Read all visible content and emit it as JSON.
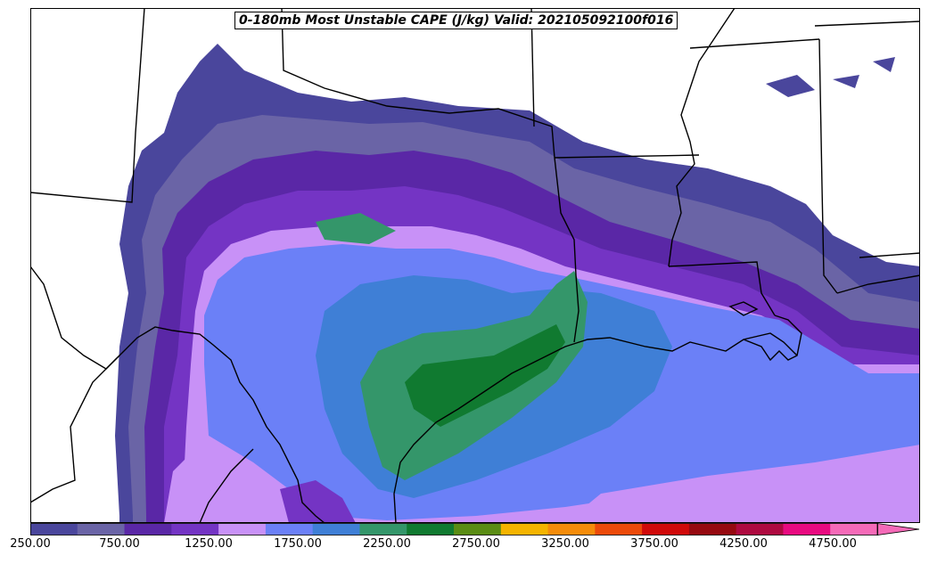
{
  "title": "0-180mb Most Unstable CAPE (J/kg) Valid: 202105092100f016",
  "colorbar": {
    "min": 250,
    "max": 5000,
    "step": 250,
    "extend": "max",
    "tick_labels": [
      "250.00",
      "750.00",
      "1250.00",
      "1750.00",
      "2250.00",
      "2750.00",
      "3250.00",
      "3750.00",
      "4250.00",
      "4750.00"
    ],
    "colors": [
      "#4a469c",
      "#6a64a6",
      "#5a27a6",
      "#7434c4",
      "#c891f7",
      "#6b80f7",
      "#3f7fd6",
      "#34966a",
      "#107a30",
      "#5a8c14",
      "#f5b400",
      "#f58c0a",
      "#ec4a0a",
      "#d00a0a",
      "#960a10",
      "#ae0a40",
      "#e80a80",
      "#f56ab8"
    ]
  },
  "map": {
    "border_color": "#000000",
    "background": "#ffffff"
  }
}
